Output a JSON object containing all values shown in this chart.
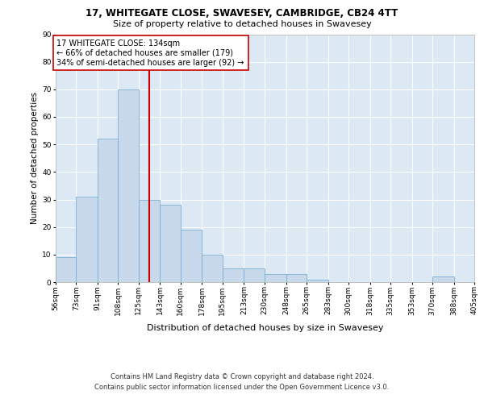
{
  "title": "17, WHITEGATE CLOSE, SWAVESEY, CAMBRIDGE, CB24 4TT",
  "subtitle": "Size of property relative to detached houses in Swavesey",
  "xlabel": "Distribution of detached houses by size in Swavesey",
  "ylabel": "Number of detached properties",
  "bar_color": "#c8d9ec",
  "bar_edge_color": "#7aafd4",
  "background_color": "#dce9f5",
  "grid_color": "#ffffff",
  "vline_color": "#cc0000",
  "vline_x": 134,
  "bin_edges": [
    56,
    73,
    91,
    108,
    125,
    143,
    160,
    178,
    195,
    213,
    230,
    248,
    265,
    283,
    300,
    318,
    335,
    353,
    370,
    388,
    405
  ],
  "bar_heights": [
    9,
    31,
    52,
    70,
    30,
    28,
    19,
    10,
    5,
    5,
    3,
    3,
    1,
    0,
    0,
    0,
    0,
    0,
    2,
    0
  ],
  "ylim": [
    0,
    90
  ],
  "yticks": [
    0,
    10,
    20,
    30,
    40,
    50,
    60,
    70,
    80,
    90
  ],
  "annotation_text": "17 WHITEGATE CLOSE: 134sqm\n← 66% of detached houses are smaller (179)\n34% of semi-detached houses are larger (92) →",
  "annotation_box_color": "#ffffff",
  "annotation_box_edgecolor": "#cc0000",
  "footer_line1": "Contains HM Land Registry data © Crown copyright and database right 2024.",
  "footer_line2": "Contains public sector information licensed under the Open Government Licence v3.0.",
  "title_fontsize": 8.5,
  "subtitle_fontsize": 8.0,
  "annotation_fontsize": 7.0,
  "tick_fontsize": 6.5,
  "xlabel_fontsize": 8.0,
  "ylabel_fontsize": 7.5,
  "footer_fontsize": 6.0
}
